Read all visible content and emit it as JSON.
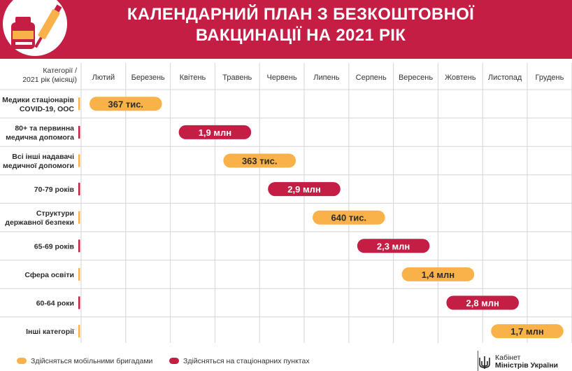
{
  "title": {
    "line1": "КАЛЕНДАРНИЙ ПЛАН З БЕЗКОШТОВНОЇ",
    "line2": "ВАКЦИНАЦІЇ НА 2021 РІК"
  },
  "colors": {
    "header": "#c41e45",
    "mobile": "#f9b24a",
    "stationary": "#c41e45",
    "grid": "#d6d6d6"
  },
  "chart_data": {
    "type": "gantt",
    "corner_label": [
      "Категорії /",
      "2021 рік (місяці)"
    ],
    "months": [
      "Лютий",
      "Березень",
      "Квітень",
      "Травень",
      "Червень",
      "Липень",
      "Серпень",
      "Вересень",
      "Жовтень",
      "Листопад",
      "Грудень"
    ],
    "rows": [
      {
        "category": [
          "Медики стаціонарів",
          "COVID-19, ООС"
        ],
        "label": "367 тис.",
        "type": "mobile",
        "start_month": "Лютий",
        "end_month": "Березень"
      },
      {
        "category": [
          "80+ та первинна",
          "медична допомога"
        ],
        "label": "1,9 млн",
        "type": "stationary",
        "start_month": "Квітень",
        "end_month": "Травень"
      },
      {
        "category": [
          "Всі інші надавачі",
          "медичної допомоги"
        ],
        "label": "363 тис.",
        "type": "mobile",
        "start_month": "Травень",
        "end_month": "Червень"
      },
      {
        "category": [
          "70-79 років"
        ],
        "label": "2,9 млн",
        "type": "stationary",
        "start_month": "Червень",
        "end_month": "Липень"
      },
      {
        "category": [
          "Структури",
          "державної безпеки"
        ],
        "label": "640 тис.",
        "type": "mobile",
        "start_month": "Липень",
        "end_month": "Серпень"
      },
      {
        "category": [
          "65-69 років"
        ],
        "label": "2,3 млн",
        "type": "stationary",
        "start_month": "Серпень",
        "end_month": "Вересень"
      },
      {
        "category": [
          "Сфера освіти"
        ],
        "label": "1,4 млн",
        "type": "mobile",
        "start_month": "Вересень",
        "end_month": "Жовтень"
      },
      {
        "category": [
          "60-64 роки"
        ],
        "label": "2,8 млн",
        "type": "stationary",
        "start_month": "Жовтень",
        "end_month": "Листопад"
      },
      {
        "category": [
          "Інші категорії"
        ],
        "label": "1,7 млн",
        "type": "mobile",
        "start_month": "Листопад",
        "end_month": "Грудень"
      }
    ],
    "legend": [
      {
        "type": "mobile",
        "label": "Здійсняться мобільними бригадами"
      },
      {
        "type": "stationary",
        "label": "Здійсняться на стаціонарних пунктах"
      }
    ]
  },
  "footer": {
    "org_line1": "Кабінет",
    "org_line2": "Міністрів України"
  }
}
